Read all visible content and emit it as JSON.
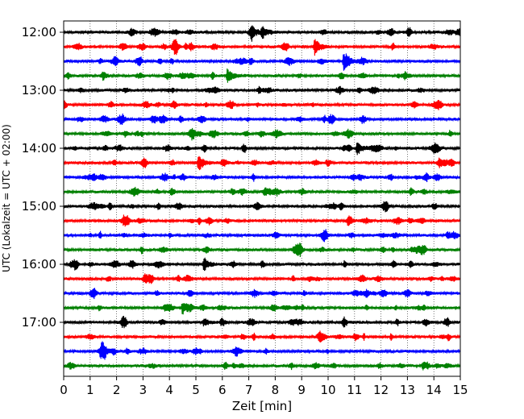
{
  "chart_data": {
    "type": "line",
    "xlabel": "Zeit  [min]",
    "ylabel": "UTC (Lokalzeit = UTC + 02:00)",
    "xlim": [
      0,
      15
    ],
    "x_ticks": [
      "0",
      "1",
      "2",
      "3",
      "4",
      "5",
      "6",
      "7",
      "8",
      "9",
      "10",
      "11",
      "12",
      "13",
      "14",
      "15"
    ],
    "y_ticks": [
      "12:00",
      "13:00",
      "14:00",
      "15:00",
      "16:00",
      "17:00"
    ],
    "grid": {
      "x": "dotted",
      "y": "none"
    },
    "line_colors": [
      "#000000",
      "#ff0000",
      "#0000ff",
      "#008000"
    ],
    "trace_interval_minutes": 15,
    "trace_starts": [
      "12:00",
      "12:15",
      "12:30",
      "12:45",
      "13:00",
      "13:15",
      "13:30",
      "13:45",
      "14:00",
      "14:15",
      "14:30",
      "14:45",
      "15:00",
      "15:15",
      "15:30",
      "15:45",
      "16:00",
      "16:15",
      "16:30",
      "16:45",
      "17:00",
      "17:15",
      "17:30",
      "17:45"
    ],
    "events": [
      {
        "trace": 0,
        "minute": 7.1,
        "amplitude": 0.8
      },
      {
        "trace": 0,
        "minute": 7.5,
        "amplitude": 0.7
      },
      {
        "trace": 1,
        "minute": 9.5,
        "amplitude": 0.9
      },
      {
        "trace": 2,
        "minute": 10.6,
        "amplitude": 1.0
      },
      {
        "trace": 3,
        "minute": 6.2,
        "amplitude": 0.8
      },
      {
        "trace": 8,
        "minute": 11.1,
        "amplitude": 0.7
      },
      {
        "trace": 9,
        "minute": 5.1,
        "amplitude": 1.0
      },
      {
        "trace": 16,
        "minute": 5.3,
        "amplitude": 0.8
      },
      {
        "trace": 19,
        "minute": 4.5,
        "amplitude": 0.7
      },
      {
        "trace": 20,
        "minute": 5.3,
        "amplitude": 0.4
      }
    ]
  }
}
